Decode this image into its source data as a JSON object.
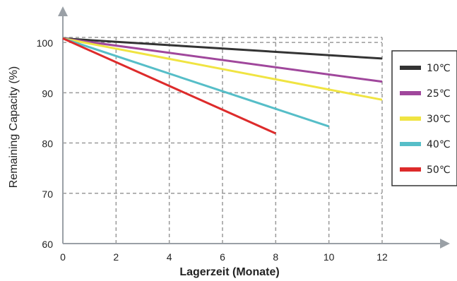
{
  "chart_data": {
    "type": "line",
    "title": "",
    "xlabel": "Lagerzeit (Monate)",
    "ylabel": "Remaining Capacity (%)",
    "xlim": [
      0,
      12
    ],
    "ylim": [
      60,
      101
    ],
    "xticks": [
      "0",
      "2",
      "4",
      "6",
      "8",
      "10",
      "12"
    ],
    "yticks": [
      "60",
      "70",
      "80",
      "90",
      "100"
    ],
    "grid": true,
    "legend_position": "right",
    "series": [
      {
        "name": "10℃",
        "color": "#333333",
        "points": [
          [
            0,
            100.8
          ],
          [
            12,
            96.8
          ]
        ]
      },
      {
        "name": "25℃",
        "color": "#a0479c",
        "points": [
          [
            0,
            100.8
          ],
          [
            12,
            92.2
          ]
        ]
      },
      {
        "name": "30℃",
        "color": "#f0e442",
        "points": [
          [
            0,
            100.8
          ],
          [
            12,
            88.6
          ]
        ]
      },
      {
        "name": "40℃",
        "color": "#56bec8",
        "points": [
          [
            0,
            100.8
          ],
          [
            10,
            83.3
          ]
        ]
      },
      {
        "name": "50℃",
        "color": "#dd2b2b",
        "points": [
          [
            0,
            100.8
          ],
          [
            8,
            81.9
          ]
        ]
      }
    ]
  }
}
